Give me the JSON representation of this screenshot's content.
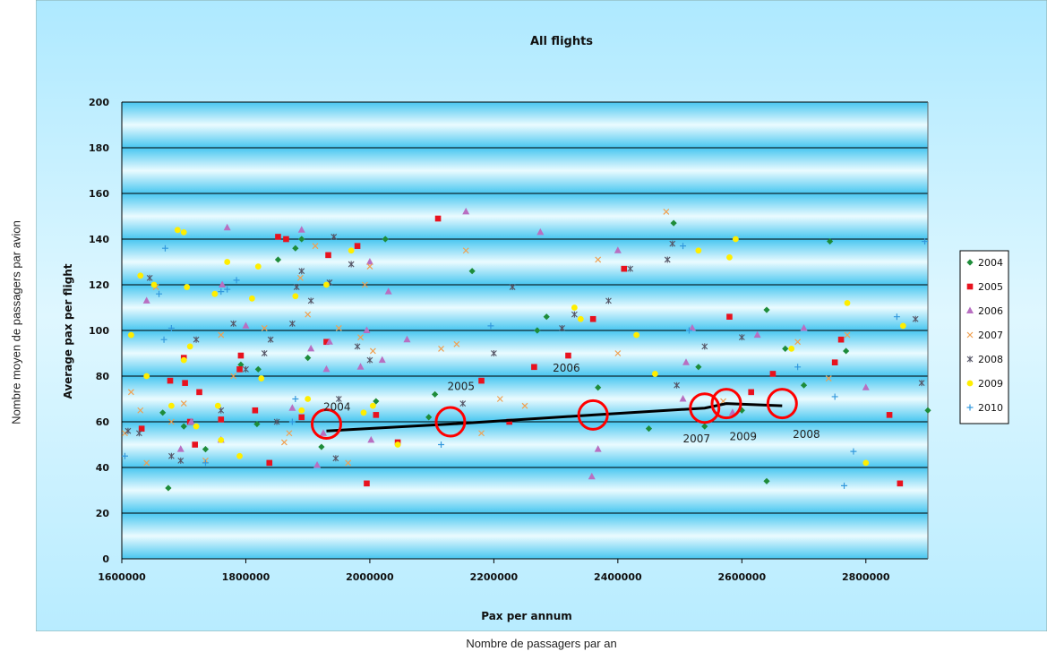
{
  "outer_labels": {
    "y": "Nombre moyen de passagers par avion",
    "x": "Nombre de passagers par an"
  },
  "colors": {
    "chart_bg": "#ccf3ff",
    "plot_band_light": "#e6faff",
    "plot_band_dark": "#48c6f0",
    "gridline": "#000000",
    "trend": "#000000",
    "highlight_circle": "#ff0000"
  },
  "chart_data": {
    "type": "scatter",
    "title": "All flights",
    "xlabel": "Pax per annum",
    "ylabel": "Average pax per flight",
    "xlim": [
      1600000,
      2900000
    ],
    "ylim": [
      0,
      200
    ],
    "xticks": [
      "1600000",
      "1800000",
      "2000000",
      "2200000",
      "2400000",
      "2600000",
      "2800000"
    ],
    "yticks": [
      "0",
      "20",
      "40",
      "60",
      "80",
      "100",
      "120",
      "140",
      "160",
      "180",
      "200"
    ],
    "grid": true,
    "legend_position": "right",
    "series": [
      {
        "name": "2004",
        "marker": "diamond",
        "color": "#1e8c3a",
        "points": [
          [
            1675000,
            31
          ],
          [
            1666000,
            64
          ],
          [
            1700000,
            58
          ],
          [
            1735000,
            48
          ],
          [
            1792000,
            85
          ],
          [
            1818000,
            59
          ],
          [
            1820000,
            83
          ],
          [
            1852000,
            131
          ],
          [
            1880000,
            136
          ],
          [
            1890000,
            140
          ],
          [
            1900000,
            88
          ],
          [
            1922000,
            49
          ],
          [
            2010000,
            69
          ],
          [
            2025000,
            140
          ],
          [
            2095000,
            62
          ],
          [
            2105000,
            72
          ],
          [
            2165000,
            126
          ],
          [
            2270000,
            100
          ],
          [
            2285000,
            106
          ],
          [
            2368000,
            75
          ],
          [
            2450000,
            57
          ],
          [
            2490000,
            147
          ],
          [
            2530000,
            84
          ],
          [
            2540000,
            58
          ],
          [
            2600000,
            65
          ],
          [
            2640000,
            34
          ],
          [
            2640000,
            109
          ],
          [
            2670000,
            92
          ],
          [
            2700000,
            76
          ],
          [
            2742000,
            139
          ],
          [
            2768000,
            91
          ],
          [
            2900000,
            65
          ]
        ]
      },
      {
        "name": "2005",
        "marker": "square",
        "color": "#e8121e",
        "points": [
          [
            1632000,
            57
          ],
          [
            1678000,
            78
          ],
          [
            1700000,
            88
          ],
          [
            1702000,
            77
          ],
          [
            1710000,
            60
          ],
          [
            1718000,
            50
          ],
          [
            1725000,
            73
          ],
          [
            1760000,
            61
          ],
          [
            1790000,
            83
          ],
          [
            1792000,
            89
          ],
          [
            1815000,
            65
          ],
          [
            1838000,
            42
          ],
          [
            1852000,
            141
          ],
          [
            1865000,
            140
          ],
          [
            1890000,
            62
          ],
          [
            1930000,
            95
          ],
          [
            1933000,
            133
          ],
          [
            1980000,
            137
          ],
          [
            1995000,
            33
          ],
          [
            2010000,
            63
          ],
          [
            2045000,
            51
          ],
          [
            2110000,
            149
          ],
          [
            2180000,
            78
          ],
          [
            2225000,
            60
          ],
          [
            2265000,
            84
          ],
          [
            2320000,
            89
          ],
          [
            2360000,
            105
          ],
          [
            2410000,
            127
          ],
          [
            2580000,
            106
          ],
          [
            2615000,
            73
          ],
          [
            2650000,
            81
          ],
          [
            2750000,
            86
          ],
          [
            2760000,
            96
          ],
          [
            2838000,
            63
          ],
          [
            2855000,
            33
          ]
        ]
      },
      {
        "name": "2006",
        "marker": "triangle",
        "color": "#b86fc1",
        "points": [
          [
            1640000,
            113
          ],
          [
            1695000,
            48
          ],
          [
            1712000,
            60
          ],
          [
            1760000,
            52
          ],
          [
            1762000,
            120
          ],
          [
            1770000,
            145
          ],
          [
            1800000,
            102
          ],
          [
            1875000,
            66
          ],
          [
            1890000,
            144
          ],
          [
            1905000,
            92
          ],
          [
            1915000,
            41
          ],
          [
            1925000,
            55
          ],
          [
            1930000,
            83
          ],
          [
            1935000,
            95
          ],
          [
            1985000,
            84
          ],
          [
            1995000,
            100
          ],
          [
            2000000,
            130
          ],
          [
            2002000,
            52
          ],
          [
            2020000,
            87
          ],
          [
            2030000,
            117
          ],
          [
            2060000,
            96
          ],
          [
            2155000,
            152
          ],
          [
            2275000,
            143
          ],
          [
            2358000,
            36
          ],
          [
            2368000,
            48
          ],
          [
            2400000,
            135
          ],
          [
            2505000,
            70
          ],
          [
            2510000,
            86
          ],
          [
            2520000,
            101
          ],
          [
            2585000,
            64
          ],
          [
            2625000,
            98
          ],
          [
            2700000,
            101
          ],
          [
            2800000,
            75
          ]
        ]
      },
      {
        "name": "2007",
        "marker": "x",
        "color": "#f0a050",
        "points": [
          [
            1605000,
            55
          ],
          [
            1615000,
            73
          ],
          [
            1630000,
            65
          ],
          [
            1640000,
            42
          ],
          [
            1655000,
            119
          ],
          [
            1680000,
            60
          ],
          [
            1700000,
            68
          ],
          [
            1735000,
            43
          ],
          [
            1760000,
            98
          ],
          [
            1780000,
            80
          ],
          [
            1830000,
            101
          ],
          [
            1862000,
            51
          ],
          [
            1870000,
            55
          ],
          [
            1888000,
            123
          ],
          [
            1900000,
            107
          ],
          [
            1912000,
            137
          ],
          [
            1950000,
            101
          ],
          [
            1965000,
            42
          ],
          [
            1985000,
            97
          ],
          [
            1992000,
            120
          ],
          [
            2000000,
            128
          ],
          [
            2005000,
            91
          ],
          [
            2115000,
            92
          ],
          [
            2140000,
            94
          ],
          [
            2155000,
            135
          ],
          [
            2180000,
            55
          ],
          [
            2210000,
            70
          ],
          [
            2250000,
            67
          ],
          [
            2368000,
            131
          ],
          [
            2400000,
            90
          ],
          [
            2478000,
            152
          ],
          [
            2570000,
            69
          ],
          [
            2690000,
            95
          ],
          [
            2740000,
            79
          ],
          [
            2770000,
            98
          ]
        ]
      },
      {
        "name": "2008",
        "marker": "asterisk",
        "color": "#555566",
        "points": [
          [
            1610000,
            56
          ],
          [
            1628000,
            55
          ],
          [
            1645000,
            123
          ],
          [
            1680000,
            45
          ],
          [
            1695000,
            43
          ],
          [
            1720000,
            96
          ],
          [
            1760000,
            65
          ],
          [
            1780000,
            103
          ],
          [
            1800000,
            83
          ],
          [
            1830000,
            90
          ],
          [
            1840000,
            96
          ],
          [
            1850000,
            60
          ],
          [
            1875000,
            103
          ],
          [
            1882000,
            119
          ],
          [
            1890000,
            126
          ],
          [
            1905000,
            113
          ],
          [
            1935000,
            121
          ],
          [
            1942000,
            141
          ],
          [
            1945000,
            44
          ],
          [
            1950000,
            70
          ],
          [
            1970000,
            129
          ],
          [
            1980000,
            93
          ],
          [
            2000000,
            87
          ],
          [
            2150000,
            68
          ],
          [
            2200000,
            90
          ],
          [
            2230000,
            119
          ],
          [
            2310000,
            101
          ],
          [
            2330000,
            107
          ],
          [
            2385000,
            113
          ],
          [
            2420000,
            127
          ],
          [
            2480000,
            131
          ],
          [
            2488000,
            138
          ],
          [
            2495000,
            76
          ],
          [
            2540000,
            93
          ],
          [
            2600000,
            97
          ],
          [
            2880000,
            105
          ],
          [
            2890000,
            77
          ]
        ]
      },
      {
        "name": "2009",
        "marker": "circle",
        "color": "#ffee00",
        "points": [
          [
            1615000,
            98
          ],
          [
            1630000,
            124
          ],
          [
            1640000,
            80
          ],
          [
            1652000,
            120
          ],
          [
            1690000,
            144
          ],
          [
            1700000,
            143
          ],
          [
            1700000,
            87
          ],
          [
            1705000,
            119
          ],
          [
            1710000,
            93
          ],
          [
            1680000,
            67
          ],
          [
            1720000,
            58
          ],
          [
            1750000,
            116
          ],
          [
            1755000,
            67
          ],
          [
            1760000,
            52
          ],
          [
            1770000,
            130
          ],
          [
            1790000,
            45
          ],
          [
            1810000,
            114
          ],
          [
            1820000,
            128
          ],
          [
            1825000,
            79
          ],
          [
            1880000,
            115
          ],
          [
            1890000,
            65
          ],
          [
            1900000,
            70
          ],
          [
            1930000,
            120
          ],
          [
            1970000,
            135
          ],
          [
            1990000,
            64
          ],
          [
            2005000,
            67
          ],
          [
            2045000,
            50
          ],
          [
            2330000,
            110
          ],
          [
            2340000,
            105
          ],
          [
            2430000,
            98
          ],
          [
            2460000,
            81
          ],
          [
            2530000,
            135
          ],
          [
            2580000,
            132
          ],
          [
            2590000,
            140
          ],
          [
            2680000,
            92
          ],
          [
            2770000,
            112
          ],
          [
            2860000,
            102
          ],
          [
            2800000,
            42
          ]
        ]
      },
      {
        "name": "2010",
        "marker": "plus",
        "color": "#3399dd",
        "points": [
          [
            1605000,
            45
          ],
          [
            1660000,
            116
          ],
          [
            1668000,
            96
          ],
          [
            1670000,
            136
          ],
          [
            1680000,
            101
          ],
          [
            1735000,
            42
          ],
          [
            1760000,
            117
          ],
          [
            1770000,
            118
          ],
          [
            1785000,
            122
          ],
          [
            1875000,
            60
          ],
          [
            1880000,
            70
          ],
          [
            2115000,
            50
          ],
          [
            2195000,
            102
          ],
          [
            2505000,
            137
          ],
          [
            2515000,
            100
          ],
          [
            2690000,
            84
          ],
          [
            2750000,
            71
          ],
          [
            2765000,
            32
          ],
          [
            2780000,
            47
          ],
          [
            2850000,
            106
          ],
          [
            2895000,
            139
          ]
        ]
      }
    ],
    "trend_line": {
      "points": [
        [
          1930000,
          56
        ],
        [
          2130000,
          59
        ],
        [
          2360000,
          63
        ],
        [
          2540000,
          66
        ],
        [
          2575000,
          68
        ],
        [
          2665000,
          67
        ]
      ]
    },
    "annotations": [
      {
        "label": "2004",
        "x": 1930000,
        "y": 59,
        "label_x": 1925000,
        "label_y": 65
      },
      {
        "label": "2005",
        "x": 2130000,
        "y": 60,
        "label_x": 2125000,
        "label_y": 74
      },
      {
        "label": "2006",
        "x": 2360000,
        "y": 63,
        "label_x": 2295000,
        "label_y": 82
      },
      {
        "label": "2007",
        "x": 2540000,
        "y": 66,
        "label_x": 2505000,
        "label_y": 51
      },
      {
        "label": "2009",
        "x": 2575000,
        "y": 68,
        "label_x": 2580000,
        "label_y": 52
      },
      {
        "label": "2008",
        "x": 2665000,
        "y": 68,
        "label_x": 2682000,
        "label_y": 53
      }
    ]
  }
}
